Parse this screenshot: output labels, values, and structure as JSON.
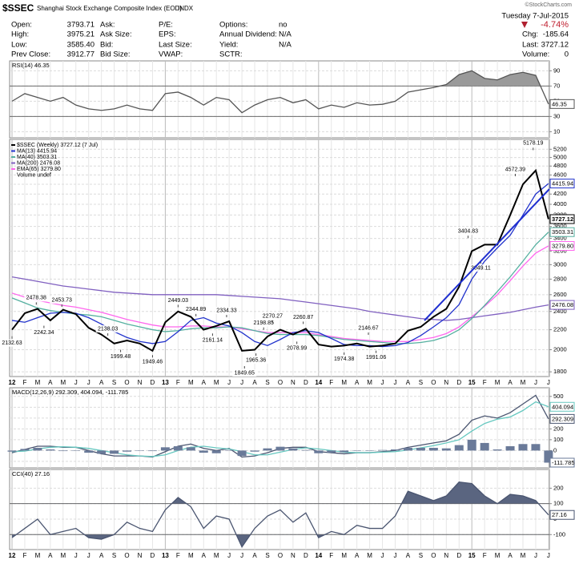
{
  "header": {
    "symbol": "$SSEC",
    "name": "Shanghai Stock Exchange Composite Index (EOD)",
    "exchange": "INDX",
    "credit": "©StockCharts.com",
    "date": "Tuesday 7-Jul-2015",
    "change_pct": "-4.74%",
    "fields": [
      [
        {
          "label": "Open:",
          "value": "3793.71"
        },
        {
          "label": "High:",
          "value": "3975.21"
        },
        {
          "label": "Low:",
          "value": "3585.40"
        },
        {
          "label": "Prev Close:",
          "value": "3912.77"
        }
      ],
      [
        {
          "label": "Ask:"
        },
        {
          "label": "Ask Size:"
        },
        {
          "label": "Bid:"
        },
        {
          "label": "Bid Size:"
        }
      ],
      [
        {
          "label": "P/E:"
        },
        {
          "label": "EPS:"
        },
        {
          "label": "Last Size:"
        },
        {
          "label": "VWAP:"
        }
      ],
      [
        {
          "label": "Options:",
          "value": "no"
        },
        {
          "label": "Annual Dividend:",
          "value": "N/A"
        },
        {
          "label": "Yield:",
          "value": "N/A"
        },
        {
          "label": "SCTR:"
        }
      ]
    ],
    "right": [
      {
        "label": "Chg:",
        "value": "-185.64"
      },
      {
        "label": "Last:",
        "value": "3727.12"
      },
      {
        "label": "Volume:",
        "value": "0"
      }
    ]
  },
  "chart_data": [
    {
      "type": "line",
      "title": "RSI(14) 46.35",
      "ylim": [
        2,
        103
      ],
      "yticks": [
        10,
        30,
        50,
        70,
        90
      ],
      "levels": [
        30,
        70
      ],
      "grid": true,
      "series": [
        {
          "color": "#555555",
          "last_label": "46.35",
          "values": [
            50,
            60,
            55,
            50,
            55,
            45,
            40,
            38,
            40,
            45,
            40,
            38,
            60,
            62,
            55,
            45,
            55,
            52,
            35,
            45,
            52,
            55,
            48,
            52,
            40,
            45,
            42,
            48,
            45,
            46,
            50,
            62,
            65,
            68,
            72,
            85,
            90,
            80,
            78,
            85,
            88,
            84,
            46.35
          ]
        }
      ]
    },
    {
      "type": "line",
      "log_scale": true,
      "ylim": [
        1760,
        5450
      ],
      "grid": true,
      "yticks": [
        1800,
        2000,
        2200,
        2400,
        2600,
        2800,
        3000,
        3200,
        3400,
        3600,
        3800,
        4000,
        4200,
        4400,
        4600,
        4800,
        5000,
        5200
      ],
      "categories": [
        "12",
        "F",
        "M",
        "A",
        "M",
        "J",
        "J",
        "A",
        "S",
        "O",
        "N",
        "D",
        "13",
        "F",
        "M",
        "A",
        "M",
        "J",
        "J",
        "A",
        "S",
        "O",
        "N",
        "D",
        "14",
        "F",
        "M",
        "A",
        "M",
        "J",
        "J",
        "A",
        "S",
        "O",
        "N",
        "D",
        "15",
        "F",
        "M",
        "A",
        "M",
        "J",
        "J"
      ],
      "volume_note": "Volume undef",
      "series": [
        {
          "name": "$SSEC (Weekly) 3727.12 (7 Jul)",
          "color": "#000000",
          "last_label": "3727.12",
          "values": [
            2200,
            2380,
            2430,
            2300,
            2420,
            2370,
            2220,
            2150,
            2060,
            2090,
            2060,
            1990,
            2280,
            2400,
            2340,
            2200,
            2240,
            2290,
            1990,
            2000,
            2130,
            2200,
            2150,
            2210,
            2050,
            2030,
            2040,
            2060,
            2030,
            2040,
            2060,
            2190,
            2230,
            2340,
            2430,
            2700,
            3200,
            3300,
            3300,
            3800,
            4400,
            4700,
            3727.12
          ]
        },
        {
          "name": "MA(13) 4415.94",
          "color": "#2233cc",
          "last_label": "4415.94",
          "values": [
            2300,
            2280,
            2330,
            2380,
            2390,
            2380,
            2330,
            2260,
            2180,
            2120,
            2080,
            2060,
            2080,
            2180,
            2300,
            2330,
            2270,
            2240,
            2170,
            2080,
            2040,
            2100,
            2170,
            2190,
            2170,
            2110,
            2050,
            2040,
            2040,
            2030,
            2040,
            2070,
            2140,
            2230,
            2330,
            2480,
            2800,
            3050,
            3250,
            3450,
            3800,
            4200,
            4415.94
          ]
        },
        {
          "name": "MA(40) 3503.31",
          "color": "#55b0a0",
          "last_label": "3503.31",
          "values": [
            2560,
            2500,
            2440,
            2410,
            2390,
            2370,
            2360,
            2340,
            2300,
            2260,
            2230,
            2200,
            2180,
            2190,
            2210,
            2220,
            2220,
            2230,
            2220,
            2190,
            2160,
            2150,
            2150,
            2150,
            2140,
            2120,
            2100,
            2090,
            2080,
            2070,
            2060,
            2060,
            2070,
            2090,
            2130,
            2200,
            2320,
            2470,
            2640,
            2830,
            3050,
            3300,
            3503.31
          ]
        },
        {
          "name": "MA(200) 2476.08",
          "color": "#8060c0",
          "last_label": "2476.08",
          "values": [
            2830,
            2800,
            2770,
            2740,
            2710,
            2690,
            2670,
            2650,
            2630,
            2620,
            2610,
            2600,
            2600,
            2600,
            2600,
            2600,
            2600,
            2590,
            2580,
            2570,
            2560,
            2550,
            2530,
            2510,
            2490,
            2470,
            2450,
            2430,
            2400,
            2380,
            2360,
            2340,
            2320,
            2310,
            2300,
            2310,
            2330,
            2350,
            2370,
            2390,
            2420,
            2450,
            2476.08
          ]
        },
        {
          "name": "EMA(65) 3279.80",
          "color": "#ff66ee",
          "last_label": "3279.80",
          "values": [
            2620,
            2570,
            2530,
            2500,
            2470,
            2450,
            2420,
            2390,
            2350,
            2310,
            2280,
            2250,
            2230,
            2230,
            2240,
            2240,
            2230,
            2230,
            2210,
            2190,
            2170,
            2170,
            2170,
            2170,
            2150,
            2130,
            2110,
            2100,
            2090,
            2080,
            2080,
            2080,
            2100,
            2120,
            2160,
            2230,
            2340,
            2460,
            2600,
            2780,
            2980,
            3170,
            3279.8
          ]
        }
      ],
      "annotations": [
        {
          "x": 0,
          "value": 2132.63
        },
        {
          "x": 1.9,
          "value": 2478.38
        },
        {
          "x": 2.5,
          "value": 2242.34
        },
        {
          "x": 3.9,
          "value": 2453.73
        },
        {
          "x": 7.5,
          "value": 2138.03
        },
        {
          "x": 8.5,
          "value": 1999.48
        },
        {
          "x": 11,
          "value": 1949.46
        },
        {
          "x": 13,
          "value": 2449.03
        },
        {
          "x": 14.4,
          "value": 2344.89
        },
        {
          "x": 15.7,
          "value": 2161.14
        },
        {
          "x": 16.8,
          "value": 2334.33
        },
        {
          "x": 18.2,
          "value": 1849.65
        },
        {
          "x": 19.1,
          "value": 1965.36
        },
        {
          "x": 19.7,
          "value": 2198.85
        },
        {
          "x": 20.4,
          "value": 2270.27
        },
        {
          "x": 22.3,
          "value": 2078.99
        },
        {
          "x": 22.8,
          "value": 2260.87
        },
        {
          "x": 26,
          "value": 1974.38
        },
        {
          "x": 27.9,
          "value": 2146.67
        },
        {
          "x": 28.5,
          "value": 1991.06
        },
        {
          "x": 35.7,
          "value": 3404.83
        },
        {
          "x": 36.7,
          "value": 3049.11
        },
        {
          "x": 39.4,
          "value": 4572.39
        },
        {
          "x": 40.8,
          "value": 5178.19
        }
      ]
    },
    {
      "type": "line",
      "title": "MACD(12,26,9) 292.309, 404.094, -111.785",
      "ylim": [
        -160,
        580
      ],
      "yticks": [
        -100,
        0,
        100,
        200,
        300,
        400,
        500
      ],
      "grid": true,
      "series": [
        {
          "style": "bar",
          "color": "#6a7a99",
          "last_label": "-111.785",
          "values": [
            -10,
            15,
            25,
            10,
            -5,
            0,
            -20,
            -30,
            -30,
            -10,
            0,
            -5,
            30,
            40,
            30,
            -20,
            -25,
            5,
            -50,
            -10,
            20,
            35,
            20,
            5,
            -25,
            -20,
            -15,
            0,
            0,
            5,
            10,
            25,
            25,
            25,
            20,
            50,
            100,
            70,
            10,
            40,
            60,
            60,
            -111.785
          ]
        },
        {
          "color": "#66c8c0",
          "last_label": "404.094",
          "values": [
            -10,
            -5,
            15,
            30,
            35,
            30,
            20,
            0,
            -20,
            -40,
            -50,
            -55,
            -40,
            0,
            30,
            40,
            25,
            15,
            -10,
            -40,
            -40,
            -15,
            10,
            25,
            15,
            0,
            -15,
            -20,
            -20,
            -15,
            -10,
            5,
            25,
            45,
            70,
            100,
            180,
            250,
            290,
            310,
            370,
            450,
            404.094
          ]
        },
        {
          "color": "#4a5570",
          "last_label": "292.309",
          "values": [
            -20,
            10,
            40,
            40,
            30,
            30,
            0,
            -30,
            -50,
            -50,
            -50,
            -60,
            -10,
            40,
            60,
            20,
            0,
            20,
            -60,
            -50,
            -20,
            20,
            30,
            30,
            -10,
            -20,
            -30,
            -20,
            -20,
            -10,
            0,
            30,
            50,
            70,
            90,
            150,
            280,
            320,
            300,
            350,
            430,
            510,
            292.309
          ]
        }
      ]
    },
    {
      "type": "line",
      "title": "CCI(40) 27.16",
      "ylim": [
        -197,
        321
      ],
      "yticks": [
        -100,
        0,
        100,
        200
      ],
      "levels": [
        -100,
        100
      ],
      "grid": true,
      "categories": [
        "12",
        "F",
        "M",
        "A",
        "M",
        "J",
        "J",
        "A",
        "S",
        "O",
        "N",
        "D",
        "13",
        "F",
        "M",
        "A",
        "M",
        "J",
        "J",
        "A",
        "S",
        "O",
        "N",
        "D",
        "14",
        "F",
        "M",
        "A",
        "M",
        "J",
        "J",
        "A",
        "S",
        "O",
        "N",
        "D",
        "15",
        "F",
        "M",
        "A",
        "M",
        "J",
        "J"
      ],
      "series": [
        {
          "color": "#4a5570",
          "last_label": "27.16",
          "values": [
            -120,
            -60,
            0,
            -100,
            -80,
            -60,
            -120,
            -130,
            -100,
            -20,
            -60,
            -80,
            60,
            140,
            80,
            -60,
            20,
            0,
            -180,
            -60,
            20,
            60,
            -20,
            40,
            -120,
            -80,
            -100,
            -40,
            -60,
            -60,
            20,
            180,
            150,
            120,
            150,
            240,
            230,
            150,
            100,
            160,
            150,
            120,
            27.16
          ]
        }
      ]
    }
  ]
}
